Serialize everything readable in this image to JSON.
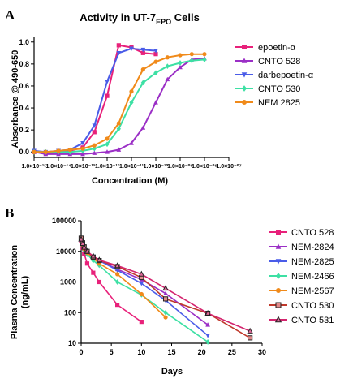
{
  "figure": {
    "panel_a_letter": "A",
    "panel_b_letter": "B"
  },
  "chart_data": [
    {
      "type": "line",
      "title": "Activity in UT-7",
      "title_subscript": "EPO",
      "title_suffix": " Cells",
      "xlabel": "Concentration (M)",
      "ylabel": "Absorbance @ 490-650",
      "x_scale": "log",
      "xlim": [
        1e-15,
        1e-07
      ],
      "ylim": [
        -0.05,
        1.05
      ],
      "x_tick_labels": [
        "1.0×10⁻¹⁵",
        "1.0×10⁻¹⁴",
        "1.0×10⁻¹³",
        "1.0×10⁻¹²",
        "1.0×10⁻¹¹",
        "1.0×10⁻¹⁰",
        "1.0×10⁻⁰⁹",
        "1.0×10⁻⁰⁸",
        "1.0×10⁻⁰⁷"
      ],
      "x_tick_values": [
        1e-15,
        1e-14,
        1e-13,
        1e-12,
        1e-11,
        1e-10,
        1e-09,
        1e-08,
        1e-07
      ],
      "y_ticks": [
        "0.0",
        "0.2",
        "0.4",
        "0.6",
        "0.8",
        "1.0"
      ],
      "y_tick_values": [
        0,
        0.2,
        0.4,
        0.6,
        0.8,
        1.0
      ],
      "legend_position": "right",
      "series": [
        {
          "name": "epoetin-α",
          "color": "#e8217a",
          "marker": "square",
          "x": [
            1e-15,
            3e-15,
            1e-14,
            3e-14,
            1e-13,
            3e-13,
            1e-12,
            3e-12,
            1e-11,
            3e-11,
            1e-10
          ],
          "y": [
            0.0,
            -0.01,
            0.0,
            0.01,
            0.04,
            0.18,
            0.51,
            0.97,
            0.95,
            0.9,
            0.89
          ]
        },
        {
          "name": "CNTO 528",
          "color": "#9b2fc6",
          "marker": "triangle-up",
          "x": [
            1e-15,
            3e-15,
            1e-14,
            3e-14,
            1e-13,
            3e-13,
            1e-12,
            3e-12,
            1e-11,
            3e-11,
            1e-10,
            3e-10,
            1e-09,
            3e-09,
            1e-08
          ],
          "y": [
            0.0,
            -0.02,
            -0.02,
            -0.02,
            -0.02,
            -0.01,
            0.0,
            0.02,
            0.08,
            0.22,
            0.45,
            0.66,
            0.77,
            0.84,
            0.85
          ]
        },
        {
          "name": "darbepoetin-α",
          "color": "#4a5ce8",
          "marker": "triangle-down",
          "x": [
            1e-15,
            3e-15,
            1e-14,
            3e-14,
            1e-13,
            3e-13,
            1e-12,
            3e-12,
            1e-11,
            3e-11,
            1e-10
          ],
          "y": [
            0.01,
            0.0,
            0.01,
            0.02,
            0.08,
            0.24,
            0.64,
            0.9,
            0.94,
            0.93,
            0.92
          ]
        },
        {
          "name": "CNTO 530",
          "color": "#3de0a4",
          "marker": "diamond",
          "x": [
            1e-15,
            3e-15,
            1e-14,
            3e-14,
            1e-13,
            3e-13,
            1e-12,
            3e-12,
            1e-11,
            3e-11,
            1e-10,
            3e-10,
            1e-09,
            3e-09,
            1e-08
          ],
          "y": [
            0.0,
            0.0,
            0.0,
            0.0,
            0.01,
            0.03,
            0.07,
            0.21,
            0.45,
            0.63,
            0.72,
            0.78,
            0.81,
            0.83,
            0.84
          ]
        },
        {
          "name": "NEM 2825",
          "color": "#f08a1a",
          "marker": "circle",
          "x": [
            1e-15,
            3e-15,
            1e-14,
            3e-14,
            1e-13,
            3e-13,
            1e-12,
            3e-12,
            1e-11,
            3e-11,
            1e-10,
            3e-10,
            1e-09,
            3e-09,
            1e-08
          ],
          "y": [
            0.0,
            0.0,
            0.01,
            0.02,
            0.03,
            0.06,
            0.12,
            0.26,
            0.55,
            0.75,
            0.82,
            0.86,
            0.88,
            0.89,
            0.89
          ]
        }
      ]
    },
    {
      "type": "line",
      "title": "",
      "xlabel": "Days",
      "ylabel": "Plasma Concentration (ng/mL)",
      "ylabel_line1": "Plasma Concentration",
      "ylabel_line2": "(ng/mL)",
      "y_scale": "log",
      "xlim": [
        0,
        30
      ],
      "ylim": [
        10,
        100000
      ],
      "x_ticks": [
        "0",
        "5",
        "10",
        "15",
        "20",
        "25",
        "30"
      ],
      "x_tick_values": [
        0,
        5,
        10,
        15,
        20,
        25,
        30
      ],
      "y_ticks": [
        "10",
        "100",
        "1000",
        "10000",
        "100000"
      ],
      "y_tick_values": [
        10,
        100,
        1000,
        10000,
        100000
      ],
      "legend_position": "right",
      "series": [
        {
          "name": "CNTO 528",
          "color": "#e8217a",
          "marker": "square",
          "x": [
            0,
            0.25,
            0.5,
            1,
            2,
            3,
            6,
            10
          ],
          "y": [
            22000,
            13000,
            8500,
            4000,
            2000,
            1000,
            180,
            50
          ]
        },
        {
          "name": "NEM-2824",
          "color": "#9b2fc6",
          "marker": "triangle-up",
          "x": [
            0,
            0.25,
            0.5,
            1,
            2,
            3,
            6,
            10,
            14,
            21
          ],
          "y": [
            24000,
            16000,
            12000,
            9000,
            6500,
            5200,
            2600,
            1200,
            420,
            40
          ]
        },
        {
          "name": "NEM-2825",
          "color": "#4a5ce8",
          "marker": "triangle-down",
          "x": [
            0,
            0.25,
            0.5,
            1,
            2,
            3,
            6,
            10,
            14,
            21
          ],
          "y": [
            26000,
            17000,
            12500,
            9500,
            6800,
            5000,
            2400,
            900,
            250,
            18
          ]
        },
        {
          "name": "NEM-2466",
          "color": "#3de0a4",
          "marker": "diamond",
          "x": [
            0,
            0.25,
            0.5,
            1,
            2,
            3,
            6,
            10,
            14,
            21
          ],
          "y": [
            22000,
            15000,
            11000,
            8000,
            5000,
            3500,
            1000,
            380,
            100,
            11
          ]
        },
        {
          "name": "NEM-2567",
          "color": "#f08a1a",
          "marker": "circle",
          "x": [
            0,
            0.25,
            0.5,
            1,
            2,
            3,
            6,
            10,
            14
          ],
          "y": [
            24000,
            16000,
            12000,
            9000,
            6000,
            4000,
            1800,
            400,
            70
          ]
        },
        {
          "name": "CNTO 530",
          "color": "#c0392b",
          "marker": "square-open",
          "x": [
            0,
            0.25,
            0.5,
            1,
            2,
            3,
            6,
            10,
            14,
            21,
            28
          ],
          "y": [
            27000,
            19000,
            14000,
            10000,
            6500,
            5000,
            3200,
            1400,
            280,
            95,
            15
          ]
        },
        {
          "name": "CNTO 531",
          "color": "#d4246e",
          "marker": "triangle-open",
          "x": [
            0,
            0.25,
            0.5,
            1,
            2,
            3,
            6,
            10,
            14,
            21,
            28
          ],
          "y": [
            25000,
            18000,
            13500,
            10000,
            7000,
            5200,
            3400,
            1800,
            620,
            95,
            25
          ]
        }
      ]
    }
  ]
}
